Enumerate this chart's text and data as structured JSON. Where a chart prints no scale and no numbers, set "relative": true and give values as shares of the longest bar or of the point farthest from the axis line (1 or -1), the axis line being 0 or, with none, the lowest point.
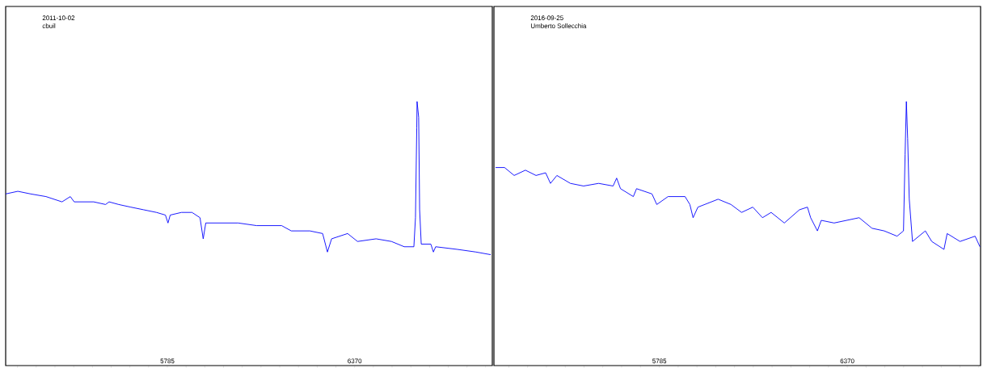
{
  "chart_data": [
    {
      "type": "line",
      "relative": true,
      "color": "#0000ff",
      "annotations": [
        "2011-10-02",
        "cbuil"
      ],
      "xlim": [
        5280,
        6800
      ],
      "xticks": [
        {
          "value": 5317,
          "label": null
        },
        {
          "value": 5375.5,
          "label": null
        },
        {
          "value": 5434,
          "label": null
        },
        {
          "value": 5492.5,
          "label": null
        },
        {
          "value": 5551,
          "label": null
        },
        {
          "value": 5609.5,
          "label": null
        },
        {
          "value": 5668,
          "label": null
        },
        {
          "value": 5726.5,
          "label": null
        },
        5785,
        {
          "value": 5843.5,
          "label": null
        },
        {
          "value": 5902,
          "label": null
        },
        {
          "value": 5960.5,
          "label": null
        },
        {
          "value": 6019,
          "label": null
        },
        {
          "value": 6077.5,
          "label": null
        },
        {
          "value": 6136,
          "label": null
        },
        {
          "value": 6194.5,
          "label": null
        },
        {
          "value": 6253,
          "label": null
        },
        {
          "value": 6311.5,
          "label": null
        },
        6370,
        {
          "value": 6428.5,
          "label": null
        },
        {
          "value": 6487,
          "label": null
        },
        {
          "value": 6545.5,
          "label": null
        },
        {
          "value": 6604,
          "label": null
        },
        {
          "value": 6662.5,
          "label": null
        },
        {
          "value": 6721,
          "label": null
        },
        {
          "value": 6779.5,
          "label": null
        }
      ],
      "x": [
        5280,
        5318,
        5358,
        5406,
        5456,
        5482,
        5494,
        5555,
        5592,
        5603,
        5633,
        5671,
        5711,
        5751,
        5779,
        5787,
        5794,
        5829,
        5862,
        5887,
        5897,
        5905,
        5945,
        6006,
        6064,
        6142,
        6172,
        6230,
        6270,
        6285,
        6298,
        6348,
        6379,
        6437,
        6485,
        6525,
        6555,
        6560,
        6564,
        6565,
        6570,
        6573,
        6578,
        6608,
        6616,
        6623,
        6691,
        6749,
        6795
      ],
      "values": [
        0.65,
        0.66,
        0.65,
        0.64,
        0.62,
        0.64,
        0.62,
        0.62,
        0.61,
        0.62,
        0.61,
        0.6,
        0.59,
        0.58,
        0.57,
        0.54,
        0.57,
        0.58,
        0.58,
        0.56,
        0.48,
        0.54,
        0.54,
        0.54,
        0.53,
        0.53,
        0.51,
        0.51,
        0.5,
        0.43,
        0.48,
        0.5,
        0.47,
        0.48,
        0.47,
        0.45,
        0.45,
        0.56,
        0.9,
        1,
        0.94,
        0.59,
        0.46,
        0.46,
        0.43,
        0.45,
        0.44,
        0.43,
        0.42
      ]
    },
    {
      "type": "line",
      "relative": true,
      "color": "#0000ff",
      "annotations": [
        "2016-09-25",
        "Umberto Sollecchia"
      ],
      "xlim": [
        5270,
        6785
      ],
      "xticks": [
        {
          "value": 5316.5,
          "label": null
        },
        {
          "value": 5375,
          "label": null
        },
        {
          "value": 5433.5,
          "label": null
        },
        {
          "value": 5492,
          "label": null
        },
        {
          "value": 5550.5,
          "label": null
        },
        {
          "value": 5609,
          "label": null
        },
        {
          "value": 5667.5,
          "label": null
        },
        {
          "value": 5726,
          "label": null
        },
        5785,
        {
          "value": 5843.5,
          "label": null
        },
        {
          "value": 5902,
          "label": null
        },
        {
          "value": 5960.5,
          "label": null
        },
        {
          "value": 6019,
          "label": null
        },
        {
          "value": 6077.5,
          "label": null
        },
        {
          "value": 6136,
          "label": null
        },
        {
          "value": 6194.5,
          "label": null
        },
        {
          "value": 6253,
          "label": null
        },
        {
          "value": 6311.5,
          "label": null
        },
        6370,
        {
          "value": 6428.5,
          "label": null
        },
        {
          "value": 6487,
          "label": null
        },
        {
          "value": 6545.5,
          "label": null
        },
        {
          "value": 6604,
          "label": null
        },
        {
          "value": 6662.5,
          "label": null
        },
        {
          "value": 6721,
          "label": null
        },
        {
          "value": 6779.5,
          "label": null
        }
      ],
      "x": [
        5275,
        5303,
        5333,
        5368,
        5401,
        5431,
        5446,
        5466,
        5508,
        5549,
        5596,
        5641,
        5652,
        5664,
        5704,
        5714,
        5762,
        5777,
        5812,
        5865,
        5880,
        5890,
        5905,
        5968,
        6008,
        6041,
        6076,
        6106,
        6133,
        6174,
        6221,
        6246,
        6256,
        6277,
        6289,
        6329,
        6407,
        6447,
        6485,
        6525,
        6545,
        6550,
        6554,
        6558,
        6563,
        6573,
        6613,
        6633,
        6671,
        6681,
        6721,
        6768,
        6783
      ],
      "values": [
        0.75,
        0.75,
        0.72,
        0.74,
        0.72,
        0.73,
        0.69,
        0.72,
        0.69,
        0.68,
        0.69,
        0.68,
        0.71,
        0.67,
        0.64,
        0.67,
        0.65,
        0.61,
        0.64,
        0.64,
        0.61,
        0.56,
        0.6,
        0.63,
        0.61,
        0.58,
        0.6,
        0.56,
        0.58,
        0.54,
        0.59,
        0.6,
        0.56,
        0.51,
        0.55,
        0.54,
        0.56,
        0.52,
        0.51,
        0.49,
        0.51,
        0.8,
        1,
        0.86,
        0.63,
        0.47,
        0.51,
        0.47,
        0.44,
        0.5,
        0.47,
        0.49,
        0.45
      ]
    }
  ]
}
